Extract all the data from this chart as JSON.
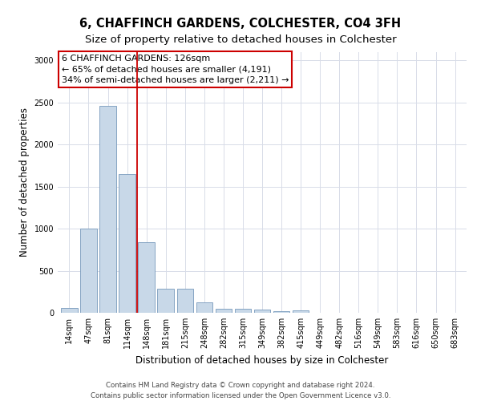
{
  "title": "6, CHAFFINCH GARDENS, COLCHESTER, CO4 3FH",
  "subtitle": "Size of property relative to detached houses in Colchester",
  "xlabel": "Distribution of detached houses by size in Colchester",
  "ylabel": "Number of detached properties",
  "footnote1": "Contains HM Land Registry data © Crown copyright and database right 2024.",
  "footnote2": "Contains public sector information licensed under the Open Government Licence v3.0.",
  "categories": [
    "14sqm",
    "47sqm",
    "81sqm",
    "114sqm",
    "148sqm",
    "181sqm",
    "215sqm",
    "248sqm",
    "282sqm",
    "315sqm",
    "349sqm",
    "382sqm",
    "415sqm",
    "449sqm",
    "482sqm",
    "516sqm",
    "549sqm",
    "583sqm",
    "616sqm",
    "650sqm",
    "683sqm"
  ],
  "values": [
    55,
    1000,
    2460,
    1650,
    835,
    290,
    290,
    120,
    50,
    50,
    35,
    20,
    30,
    0,
    0,
    0,
    0,
    0,
    0,
    0,
    0
  ],
  "bar_color": "#c8d8e8",
  "bar_edge_color": "#7799bb",
  "grid_color": "#d8dce8",
  "annotation_box_text": "6 CHAFFINCH GARDENS: 126sqm\n← 65% of detached houses are smaller (4,191)\n34% of semi-detached houses are larger (2,211) →",
  "property_line_x": 3.5,
  "ylim": [
    0,
    3100
  ],
  "annotation_box_color": "#ffffff",
  "annotation_box_edge_color": "#cc0000",
  "property_line_color": "#cc0000",
  "title_fontsize": 10.5,
  "subtitle_fontsize": 9.5,
  "axis_label_fontsize": 8.5,
  "tick_fontsize": 7,
  "annotation_fontsize": 8,
  "yticks": [
    0,
    500,
    1000,
    1500,
    2000,
    2500,
    3000
  ]
}
